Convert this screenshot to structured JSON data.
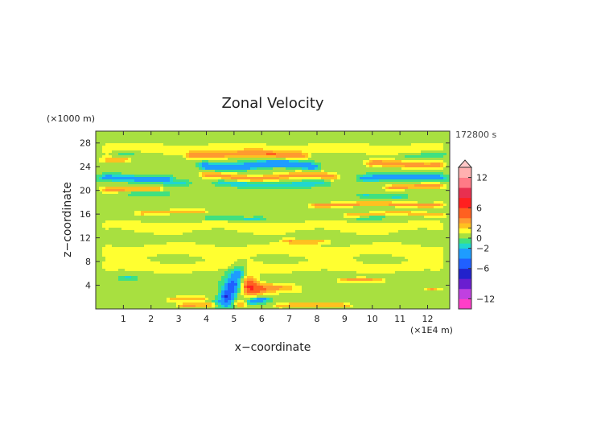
{
  "chart_data": {
    "type": "heatmap",
    "title": "Zonal Velocity",
    "xlabel": "x−coordinate",
    "ylabel": "z−coordinate",
    "x_unit": "(×1E4 m)",
    "y_unit": "(×1000 m)",
    "time_label": "172800 s",
    "x_ticks": [
      1,
      2,
      3,
      4,
      5,
      6,
      7,
      8,
      9,
      10,
      11,
      12
    ],
    "y_ticks": [
      4,
      8,
      12,
      16,
      20,
      24,
      28
    ],
    "xlim": [
      0,
      12.8
    ],
    "ylim": [
      0,
      30
    ],
    "colorbar": {
      "ticks": [
        12,
        6,
        2,
        0,
        -2,
        -6,
        -12
      ],
      "tick_labels": [
        "12",
        "6",
        "2",
        "0",
        "−2",
        "−6",
        "−12"
      ],
      "range": [
        -14,
        14
      ],
      "levels": [
        {
          "from": -14,
          "to": -12,
          "color": "#ff3ec8"
        },
        {
          "from": -12,
          "to": -10,
          "color": "#c040e0"
        },
        {
          "from": -10,
          "to": -8,
          "color": "#6a1ed0"
        },
        {
          "from": -8,
          "to": -6,
          "color": "#2222cc"
        },
        {
          "from": -6,
          "to": -4,
          "color": "#2060ff"
        },
        {
          "from": -4,
          "to": -2,
          "color": "#1e9cff"
        },
        {
          "from": -2,
          "to": -1,
          "color": "#20d6d0"
        },
        {
          "from": -1,
          "to": 0,
          "color": "#40e080"
        },
        {
          "from": 0,
          "to": 1,
          "color": "#a8e040"
        },
        {
          "from": 1,
          "to": 2,
          "color": "#ffff30"
        },
        {
          "from": 2,
          "to": 3,
          "color": "#ffc020"
        },
        {
          "from": 3,
          "to": 4,
          "color": "#ff9a30"
        },
        {
          "from": 4,
          "to": 6,
          "color": "#ff6020"
        },
        {
          "from": 6,
          "to": 8,
          "color": "#ff2020"
        },
        {
          "from": 8,
          "to": 10,
          "color": "#e83050"
        },
        {
          "from": 10,
          "to": 12,
          "color": "#ff7a86"
        },
        {
          "from": 12,
          "to": 14,
          "color": "#ffb0b0"
        }
      ]
    },
    "bands": [
      {
        "z": 27.0,
        "x0": 0.0,
        "x1": 12.8,
        "u": 1.3,
        "w": 1.4,
        "amp": 0.25
      },
      {
        "z": 26.3,
        "x0": 0.5,
        "x1": 1.7,
        "u": -1.2,
        "w": 0.5,
        "amp": 0.1
      },
      {
        "z": 26.0,
        "x0": 10.9,
        "x1": 12.8,
        "u": -1.0,
        "w": 0.6,
        "amp": 0.1
      },
      {
        "z": 26.0,
        "x0": 3.1,
        "x1": 7.8,
        "u": 3.0,
        "w": 0.7,
        "amp": 0.2
      },
      {
        "z": 25.2,
        "x0": 0.0,
        "x1": 1.4,
        "u": 2.3,
        "w": 0.6,
        "amp": 0.1
      },
      {
        "z": 24.9,
        "x0": 1.2,
        "x1": 2.5,
        "u": 0.5,
        "w": 0.5,
        "amp": 0.1
      },
      {
        "z": 24.2,
        "x0": 3.6,
        "x1": 8.2,
        "u": -4.2,
        "w": 0.7,
        "amp": 0.35
      },
      {
        "z": 24.4,
        "x0": 9.6,
        "x1": 12.8,
        "u": 3.6,
        "w": 0.7,
        "amp": 0.2
      },
      {
        "z": 23.3,
        "x0": 3.1,
        "x1": 9.0,
        "u": 0.5,
        "w": 0.6,
        "amp": 0.2
      },
      {
        "z": 22.0,
        "x0": 0.0,
        "x1": 2.9,
        "u": -3.6,
        "w": 0.55,
        "amp": 0.15
      },
      {
        "z": 22.3,
        "x0": 3.6,
        "x1": 8.9,
        "u": 3.2,
        "w": 0.65,
        "amp": 0.3
      },
      {
        "z": 22.2,
        "x0": 9.4,
        "x1": 12.8,
        "u": -4.0,
        "w": 0.55,
        "amp": 0.15
      },
      {
        "z": 21.3,
        "x0": 2.3,
        "x1": 3.5,
        "u": -1.5,
        "w": 0.5,
        "amp": 0.1
      },
      {
        "z": 21.0,
        "x0": 4.2,
        "x1": 8.5,
        "u": -2.0,
        "w": 0.55,
        "amp": 0.2
      },
      {
        "z": 20.1,
        "x0": 0.0,
        "x1": 2.6,
        "u": 3.2,
        "w": 0.55,
        "amp": 0.1
      },
      {
        "z": 20.6,
        "x0": 10.3,
        "x1": 12.8,
        "u": 3.2,
        "w": 0.55,
        "amp": 0.15
      },
      {
        "z": 19.5,
        "x0": 1.0,
        "x1": 2.8,
        "u": -1.4,
        "w": 0.45,
        "amp": 0.1
      },
      {
        "z": 19.0,
        "x0": 9.3,
        "x1": 11.4,
        "u": -1.6,
        "w": 0.45,
        "amp": 0.1
      },
      {
        "z": 18.0,
        "x0": 0.0,
        "x1": 12.8,
        "u": 0.4,
        "w": 1.2,
        "amp": 0.3
      },
      {
        "z": 17.6,
        "x0": 7.6,
        "x1": 12.8,
        "u": 2.8,
        "w": 0.45,
        "amp": 0.15
      },
      {
        "z": 16.3,
        "x0": 1.3,
        "x1": 4.2,
        "u": 2.4,
        "w": 0.45,
        "amp": 0.15
      },
      {
        "z": 16.0,
        "x0": 8.8,
        "x1": 12.8,
        "u": 2.4,
        "w": 0.45,
        "amp": 0.2
      },
      {
        "z": 15.2,
        "x0": 3.8,
        "x1": 6.3,
        "u": -1.6,
        "w": 0.4,
        "amp": 0.1
      },
      {
        "z": 15.4,
        "x0": 9.3,
        "x1": 10.6,
        "u": -1.4,
        "w": 0.4,
        "amp": 0.1
      },
      {
        "z": 14.0,
        "x0": 0.0,
        "x1": 12.8,
        "u": 1.2,
        "w": 1.2,
        "amp": 0.3
      },
      {
        "z": 12.5,
        "x0": 0.0,
        "x1": 12.8,
        "u": 0.5,
        "w": 1.0,
        "amp": 0.3
      },
      {
        "z": 11.4,
        "x0": 6.6,
        "x1": 8.6,
        "u": 2.3,
        "w": 0.4,
        "amp": 0.1
      },
      {
        "z": 10.0,
        "x0": 0.0,
        "x1": 12.8,
        "u": 1.3,
        "w": 1.4,
        "amp": 0.3
      },
      {
        "z": 8.5,
        "x0": 0.0,
        "x1": 12.8,
        "u": 0.4,
        "w": 1.0,
        "amp": 0.3
      },
      {
        "z": 7.0,
        "x0": 0.0,
        "x1": 12.8,
        "u": 1.3,
        "w": 1.2,
        "amp": 0.3
      },
      {
        "z": 5.2,
        "x0": 0.7,
        "x1": 1.6,
        "u": -1.6,
        "w": 0.35,
        "amp": 0.05
      },
      {
        "z": 4.8,
        "x0": 8.6,
        "x1": 10.6,
        "u": 2.9,
        "w": 0.45,
        "amp": 0.1
      },
      {
        "z": 3.4,
        "x0": 11.8,
        "x1": 12.6,
        "u": 2.8,
        "w": 0.35,
        "amp": 0.05
      },
      {
        "z": 2.6,
        "x0": 0.0,
        "x1": 12.8,
        "u": 0.5,
        "w": 0.9,
        "amp": 0.2
      },
      {
        "z": 1.6,
        "x0": 2.4,
        "x1": 4.2,
        "u": 2.2,
        "w": 0.5,
        "amp": 0.1
      },
      {
        "z": 1.4,
        "x0": 6.1,
        "x1": 8.2,
        "u": 0.4,
        "w": 0.6,
        "amp": 0.1
      },
      {
        "z": 0.6,
        "x0": 2.8,
        "x1": 4.8,
        "u": 3.2,
        "w": 0.5,
        "amp": 0.1
      },
      {
        "z": 0.6,
        "x0": 6.3,
        "x1": 9.4,
        "u": 2.8,
        "w": 0.5,
        "amp": 0.1
      }
    ],
    "blobs": [
      {
        "x": 5.15,
        "z": 6.2,
        "u": -3.0,
        "rx": 0.35,
        "rz": 1.5
      },
      {
        "x": 4.95,
        "z": 4.0,
        "u": -5.0,
        "rx": 0.3,
        "rz": 1.4
      },
      {
        "x": 4.75,
        "z": 2.2,
        "u": -6.5,
        "rx": 0.28,
        "rz": 1.2
      },
      {
        "x": 4.55,
        "z": 0.8,
        "u": -4.0,
        "rx": 0.35,
        "rz": 0.7
      },
      {
        "x": 5.55,
        "z": 4.2,
        "u": 4.5,
        "rx": 0.3,
        "rz": 1.8
      },
      {
        "x": 5.85,
        "z": 3.4,
        "u": 3.2,
        "rx": 0.45,
        "rz": 1.1
      },
      {
        "x": 6.6,
        "z": 3.6,
        "u": 2.8,
        "rx": 0.8,
        "rz": 0.8
      },
      {
        "x": 5.6,
        "z": 1.2,
        "u": -2.4,
        "rx": 0.4,
        "rz": 0.5
      },
      {
        "x": 5.25,
        "z": 0.9,
        "u": 3.4,
        "rx": 0.25,
        "rz": 0.7
      },
      {
        "x": 6.0,
        "z": 1.6,
        "u": -3.0,
        "rx": 0.35,
        "rz": 0.45
      }
    ]
  }
}
